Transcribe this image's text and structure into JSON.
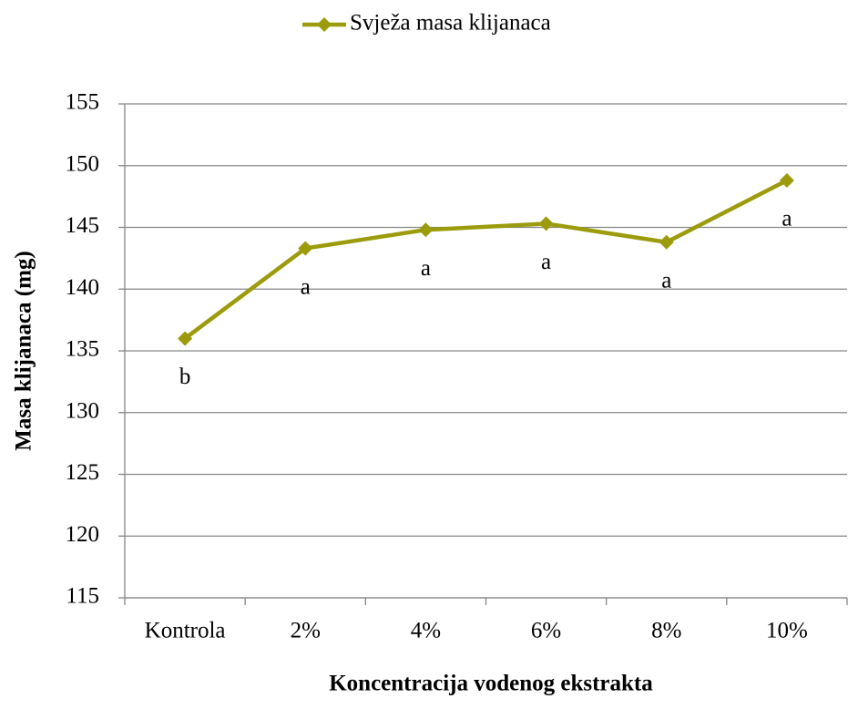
{
  "chart_data": {
    "type": "line",
    "x_label": "Koncentracija vodenog ekstrakta",
    "y_label": "Masa klijanaca (mg)",
    "categories": [
      "Kontrola",
      "2%",
      "4%",
      "6%",
      "8%",
      "10%"
    ],
    "series": [
      {
        "name": "Svježa masa klijanaca",
        "color": "#9b9b0c",
        "values": [
          136,
          143.3,
          144.8,
          145.3,
          143.8,
          148.8
        ]
      }
    ],
    "annotations": [
      "b",
      "a",
      "a",
      "a",
      "a",
      "a"
    ],
    "ylim": [
      115,
      155
    ],
    "yticks": [
      115,
      120,
      125,
      130,
      135,
      140,
      145,
      150,
      155
    ],
    "grid": true,
    "legend": "top"
  }
}
